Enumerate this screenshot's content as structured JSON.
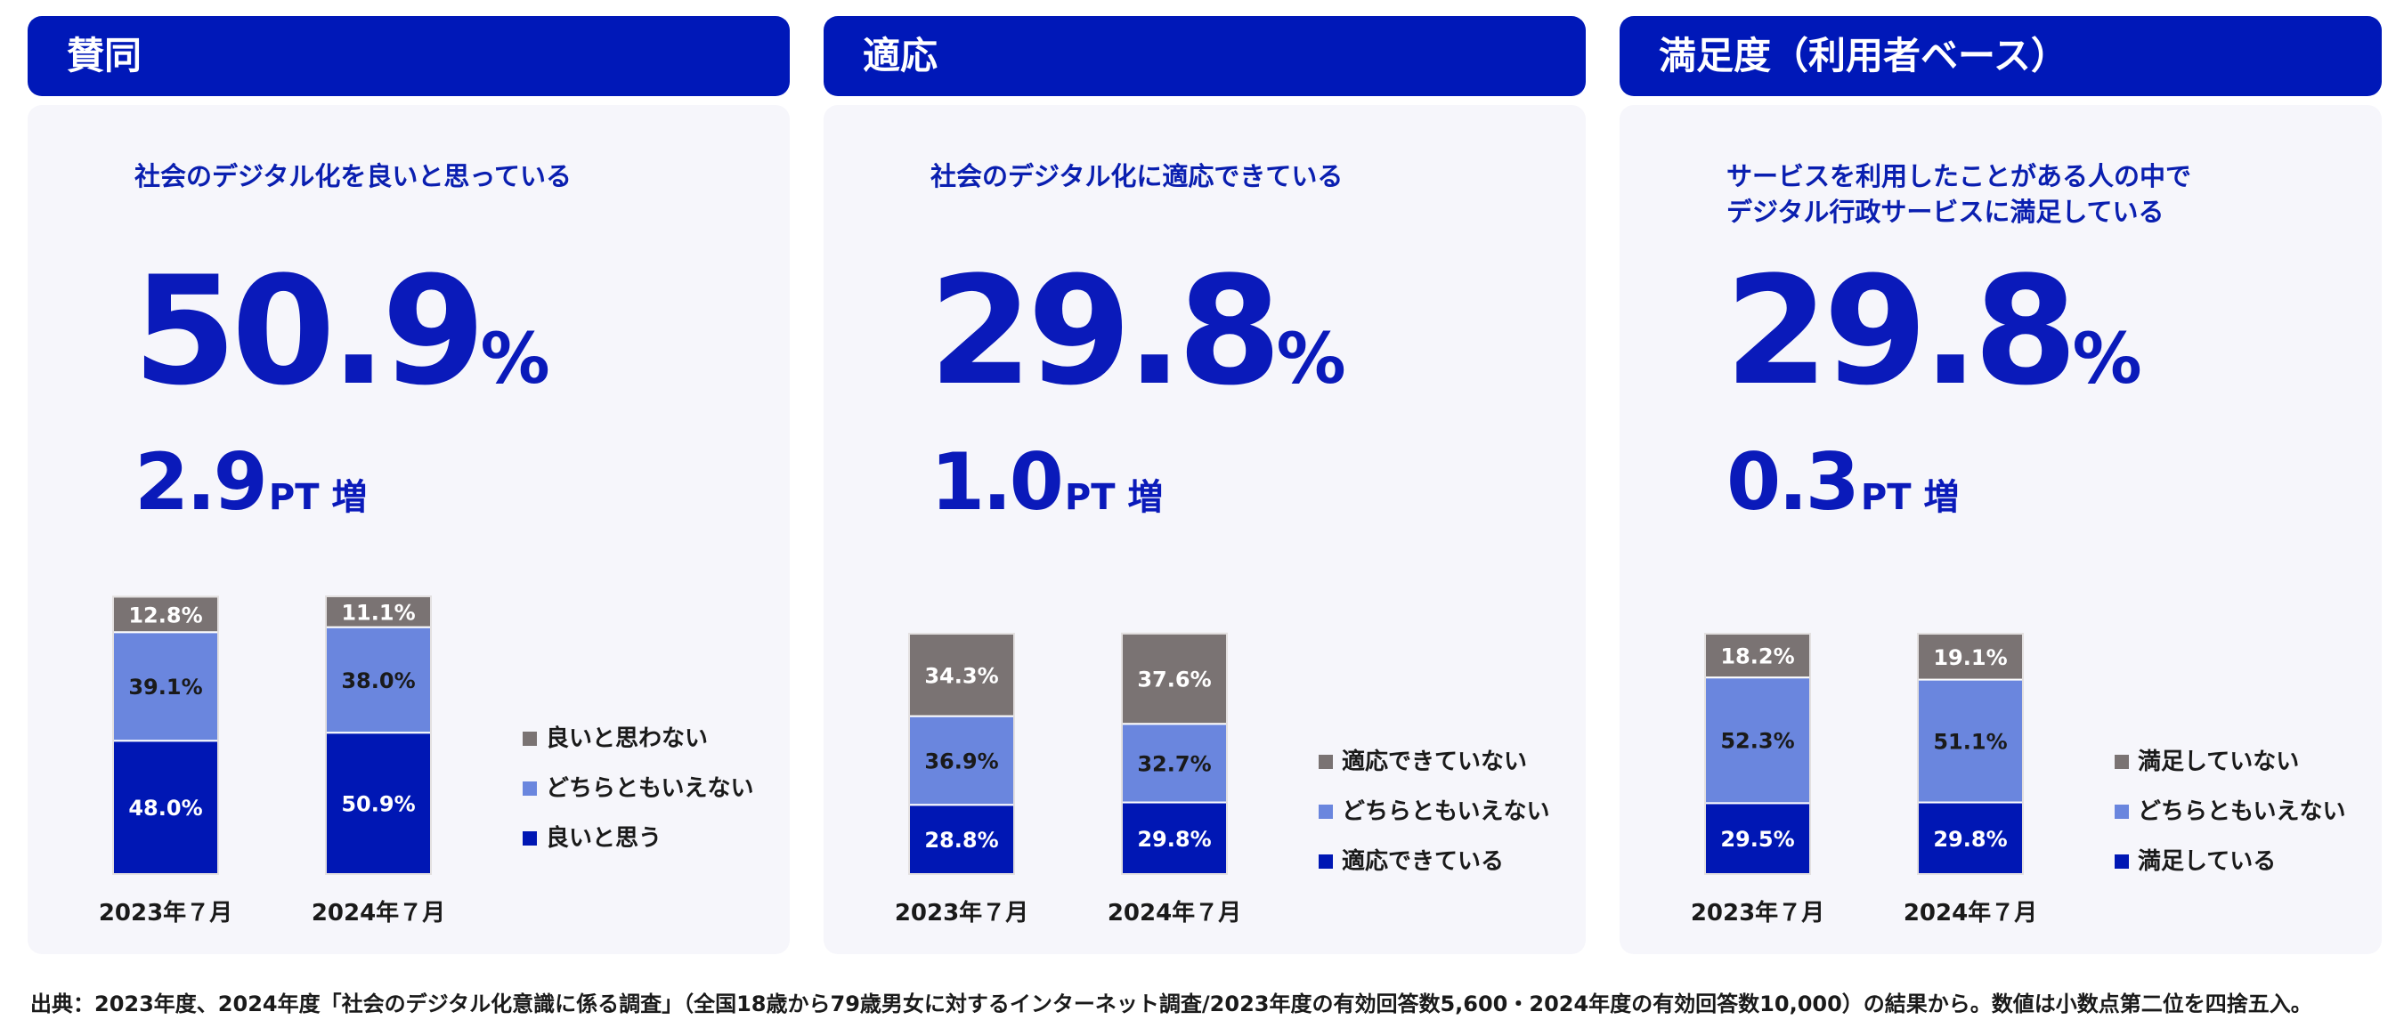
{
  "colors": {
    "header_bg": "#0018b8",
    "accent_text": "#0a1aba",
    "seg_positive": "#0017b4",
    "seg_neutral": "#6a86de",
    "seg_negative": "#7a7373",
    "panel_bg": "#f6f6fb"
  },
  "panels": [
    {
      "header": "賛同",
      "subtitle": "社会のデジタル化を良いと思っている",
      "big_value": "50.9",
      "big_unit": "%",
      "delta_value": "2.9",
      "delta_unit": "PT 増"
    },
    {
      "header": "適応",
      "subtitle": "社会のデジタル化に適応できている",
      "big_value": "29.8",
      "big_unit": "%",
      "delta_value": "1.0",
      "delta_unit": "PT 増"
    },
    {
      "header": "満足度（利用者ベース）",
      "subtitle": "サービスを利用したことがある人の中で\nデジタル行政サービスに満足している",
      "big_value": "29.8",
      "big_unit": "%",
      "delta_value": "0.3",
      "delta_unit": "PT 増"
    }
  ],
  "chart_data": [
    {
      "type": "stacked-bar",
      "title": "賛同",
      "categories": [
        "2023年７月",
        "2024年７月"
      ],
      "series": [
        {
          "name": "良いと思う",
          "values": [
            48.0,
            50.9
          ],
          "labels": [
            "48.0%",
            "50.9%"
          ]
        },
        {
          "name": "どちらともいえない",
          "values": [
            39.1,
            38.0
          ],
          "labels": [
            "39.1%",
            "38.0%"
          ]
        },
        {
          "name": "良いと思わない",
          "values": [
            12.8,
            11.1
          ],
          "labels": [
            "12.8%",
            "11.1%"
          ]
        }
      ],
      "legend": [
        "良いと思わない",
        "どちらともいえない",
        "良いと思う"
      ],
      "ylim": [
        0,
        100
      ]
    },
    {
      "type": "stacked-bar",
      "title": "適応",
      "categories": [
        "2023年７月",
        "2024年７月"
      ],
      "series": [
        {
          "name": "適応できている",
          "values": [
            28.8,
            29.8
          ],
          "labels": [
            "28.8%",
            "29.8%"
          ]
        },
        {
          "name": "どちらともいえない",
          "values": [
            36.9,
            32.7
          ],
          "labels": [
            "36.9%",
            "32.7%"
          ]
        },
        {
          "name": "適応できていない",
          "values": [
            34.3,
            37.6
          ],
          "labels": [
            "34.3%",
            "37.6%"
          ]
        }
      ],
      "legend": [
        "適応できていない",
        "どちらともいえない",
        "適応できている"
      ],
      "ylim": [
        0,
        100
      ]
    },
    {
      "type": "stacked-bar",
      "title": "満足度（利用者ベース）",
      "categories": [
        "2023年７月",
        "2024年７月"
      ],
      "series": [
        {
          "name": "満足している",
          "values": [
            29.5,
            29.8
          ],
          "labels": [
            "29.5%",
            "29.8%"
          ]
        },
        {
          "name": "どちらともいえない",
          "values": [
            52.3,
            51.1
          ],
          "labels": [
            "52.3%",
            "51.1%"
          ]
        },
        {
          "name": "満足していない",
          "values": [
            18.2,
            19.1
          ],
          "labels": [
            "18.2%",
            "19.1%"
          ]
        }
      ],
      "legend": [
        "満足していない",
        "どちらともいえない",
        "満足している"
      ],
      "ylim": [
        0,
        100
      ]
    }
  ],
  "footnote": "出典：2023年度、2024年度「社会のデジタル化意識に係る調査」（全国18歳から79歳男女に対するインターネット調査/2023年度の有効回答数5,600・2024年度の有効回答数10,000）の結果から。数値は小数点第二位を四捨五入。"
}
